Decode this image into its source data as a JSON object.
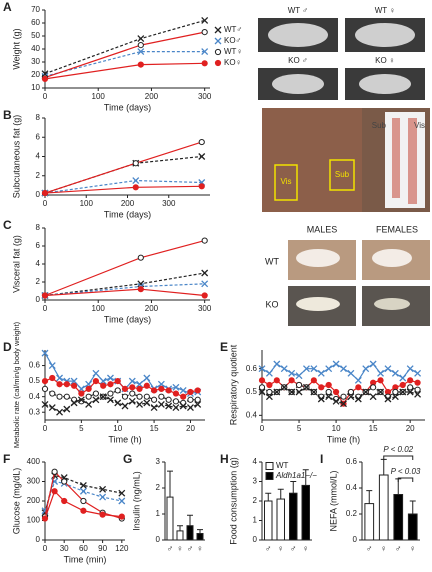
{
  "chart_data": [
    {
      "type": "line",
      "panel": "A",
      "xlabel": "Time (days)",
      "ylabel": "Weight (g)",
      "x": [
        0,
        180,
        300
      ],
      "xlim": [
        0,
        310
      ],
      "xticks": [
        0,
        100,
        200,
        300
      ],
      "ylim": [
        10,
        70
      ],
      "yticks": [
        10,
        20,
        30,
        40,
        50,
        60,
        70
      ],
      "legend": true,
      "series": [
        {
          "name": "WT♂",
          "color": "#222222",
          "marker": "x",
          "dash": true,
          "values": [
            21,
            48,
            62
          ]
        },
        {
          "name": "KO♂",
          "color": "#4a86c8",
          "marker": "x",
          "dash": true,
          "values": [
            19,
            38,
            38
          ]
        },
        {
          "name": "WT♀",
          "color": "#e02020",
          "marker": "circle-open",
          "dash": false,
          "values": [
            18,
            43,
            53
          ]
        },
        {
          "name": "KO♀",
          "color": "#e02020",
          "marker": "circle",
          "dash": false,
          "values": [
            17,
            28,
            29
          ]
        }
      ]
    },
    {
      "type": "line",
      "panel": "B",
      "xlabel": "Time (days)",
      "ylabel": "Subcutaneous fat (g)",
      "x": [
        0,
        220,
        380
      ],
      "xlim": [
        0,
        400
      ],
      "xticks": [
        0,
        100,
        200,
        300
      ],
      "ylim": [
        0,
        8
      ],
      "yticks": [
        0,
        2,
        4,
        6,
        8
      ],
      "series": [
        {
          "color": "#222222",
          "marker": "x",
          "dash": true,
          "values": [
            0.2,
            3.3,
            4.0
          ]
        },
        {
          "color": "#4a86c8",
          "marker": "x",
          "dash": true,
          "values": [
            0.2,
            1.5,
            1.3
          ]
        },
        {
          "color": "#e02020",
          "marker": "circle-open",
          "dash": false,
          "values": [
            0.2,
            3.3,
            5.5
          ]
        },
        {
          "color": "#e02020",
          "marker": "circle",
          "dash": false,
          "values": [
            0.2,
            0.8,
            0.9
          ]
        }
      ]
    },
    {
      "type": "line",
      "panel": "C",
      "xlabel": "Time (days)",
      "ylabel": "Visceral fat (g)",
      "x": [
        0,
        180,
        300
      ],
      "xlim": [
        0,
        310
      ],
      "xticks": [
        0,
        100,
        200,
        300
      ],
      "ylim": [
        0,
        8
      ],
      "yticks": [
        0,
        2,
        4,
        6,
        8
      ],
      "series": [
        {
          "color": "#222222",
          "marker": "x",
          "dash": true,
          "values": [
            0.5,
            1.8,
            3.0
          ]
        },
        {
          "color": "#4a86c8",
          "marker": "x",
          "dash": true,
          "values": [
            0.5,
            1.5,
            1.8
          ]
        },
        {
          "color": "#e02020",
          "marker": "circle-open",
          "dash": false,
          "values": [
            0.5,
            4.7,
            6.6
          ]
        },
        {
          "color": "#e02020",
          "marker": "circle",
          "dash": false,
          "values": [
            0.5,
            1.2,
            0.5
          ]
        }
      ]
    },
    {
      "type": "line",
      "panel": "D",
      "xlabel": "Time (h)",
      "ylabel": "Metabolic rate (cal/min/g body weight)",
      "x": [
        0,
        1,
        2,
        3,
        4,
        5,
        6,
        7,
        8,
        9,
        10,
        11,
        12,
        13,
        14,
        15,
        16,
        17,
        18,
        19,
        20,
        21
      ],
      "xlim": [
        0,
        22
      ],
      "xticks": [
        0,
        5,
        10,
        15,
        20
      ],
      "ylim": [
        0.25,
        0.7
      ],
      "yticks": [
        0.3,
        0.4,
        0.5,
        0.6
      ],
      "series": [
        {
          "color": "#4a86c8",
          "marker": "x",
          "dash": false,
          "values": [
            0.68,
            0.6,
            0.52,
            0.5,
            0.5,
            0.45,
            0.48,
            0.55,
            0.5,
            0.52,
            0.5,
            0.45,
            0.5,
            0.48,
            0.52,
            0.45,
            0.48,
            0.45,
            0.46,
            0.44,
            0.42,
            0.43
          ]
        },
        {
          "color": "#e02020",
          "marker": "circle",
          "dash": false,
          "values": [
            0.5,
            0.52,
            0.48,
            0.48,
            0.47,
            0.42,
            0.45,
            0.5,
            0.47,
            0.48,
            0.5,
            0.45,
            0.46,
            0.45,
            0.47,
            0.44,
            0.45,
            0.44,
            0.42,
            0.4,
            0.43,
            0.44
          ]
        },
        {
          "color": "#222222",
          "marker": "circle-open",
          "dash": true,
          "values": [
            0.45,
            0.42,
            0.4,
            0.4,
            0.38,
            0.37,
            0.4,
            0.42,
            0.4,
            0.42,
            0.44,
            0.4,
            0.42,
            0.4,
            0.4,
            0.38,
            0.4,
            0.38,
            0.37,
            0.36,
            0.38,
            0.38
          ]
        },
        {
          "color": "#222222",
          "marker": "x",
          "dash": true,
          "values": [
            0.35,
            0.33,
            0.3,
            0.32,
            0.36,
            0.38,
            0.35,
            0.38,
            0.4,
            0.38,
            0.36,
            0.34,
            0.37,
            0.35,
            0.36,
            0.33,
            0.35,
            0.34,
            0.33,
            0.34,
            0.33,
            0.35
          ]
        }
      ]
    },
    {
      "type": "line",
      "panel": "E",
      "xlabel": "Time (h)",
      "ylabel": "Respiratory quotient",
      "x": [
        0,
        1,
        2,
        3,
        4,
        5,
        6,
        7,
        8,
        9,
        10,
        11,
        12,
        13,
        14,
        15,
        16,
        17,
        18,
        19,
        20,
        21
      ],
      "xlim": [
        0,
        22
      ],
      "xticks": [
        0,
        5,
        10,
        15,
        20
      ],
      "ylim": [
        0.38,
        0.68
      ],
      "yticks": [
        0.4,
        0.5,
        0.6
      ],
      "series": [
        {
          "color": "#4a86c8",
          "marker": "x",
          "dash": false,
          "values": [
            0.6,
            0.58,
            0.62,
            0.6,
            0.58,
            0.57,
            0.6,
            0.6,
            0.58,
            0.6,
            0.62,
            0.6,
            0.58,
            0.55,
            0.6,
            0.62,
            0.58,
            0.6,
            0.58,
            0.56,
            0.6,
            0.58
          ]
        },
        {
          "color": "#e02020",
          "marker": "circle",
          "dash": false,
          "values": [
            0.55,
            0.53,
            0.55,
            0.52,
            0.55,
            0.53,
            0.52,
            0.55,
            0.52,
            0.53,
            0.5,
            0.45,
            0.5,
            0.52,
            0.5,
            0.54,
            0.55,
            0.5,
            0.52,
            0.53,
            0.55,
            0.54
          ]
        },
        {
          "color": "#222222",
          "marker": "circle-open",
          "dash": true,
          "values": [
            0.52,
            0.5,
            0.5,
            0.52,
            0.5,
            0.53,
            0.52,
            0.5,
            0.48,
            0.5,
            0.47,
            0.48,
            0.5,
            0.48,
            0.5,
            0.52,
            0.5,
            0.48,
            0.5,
            0.5,
            0.52,
            0.51
          ]
        },
        {
          "color": "#222222",
          "marker": "x",
          "dash": true,
          "values": [
            0.5,
            0.48,
            0.5,
            0.52,
            0.5,
            0.5,
            0.52,
            0.5,
            0.47,
            0.48,
            0.46,
            0.45,
            0.48,
            0.47,
            0.5,
            0.48,
            0.5,
            0.47,
            0.48,
            0.5,
            0.5,
            0.49
          ]
        }
      ]
    },
    {
      "type": "line",
      "panel": "F",
      "xlabel": "Time (min)",
      "ylabel": "Glucose (mg/dL)",
      "x": [
        0,
        15,
        30,
        60,
        90,
        120
      ],
      "xlim": [
        0,
        125
      ],
      "xticks": [
        0,
        30,
        60,
        90,
        120
      ],
      "ylim": [
        0,
        400
      ],
      "yticks": [
        0,
        100,
        200,
        300,
        400
      ],
      "series": [
        {
          "color": "#222222",
          "marker": "x",
          "dash": true,
          "values": [
            140,
            330,
            320,
            280,
            260,
            240
          ]
        },
        {
          "color": "#4a86c8",
          "marker": "x",
          "dash": true,
          "values": [
            150,
            300,
            290,
            250,
            220,
            200
          ]
        },
        {
          "color": "#e02020",
          "marker": "circle-open",
          "dash": false,
          "values": [
            120,
            350,
            300,
            200,
            140,
            110
          ]
        },
        {
          "color": "#e02020",
          "marker": "circle",
          "dash": false,
          "values": [
            110,
            250,
            200,
            150,
            130,
            120
          ]
        }
      ]
    },
    {
      "type": "bar",
      "panel": "G",
      "ylabel": "Insulin (ng/mL)",
      "categories": [
        "♂",
        "♀",
        "♂",
        "♀"
      ],
      "values": [
        1.65,
        0.35,
        0.55,
        0.25
      ],
      "errors": [
        1.0,
        0.2,
        0.4,
        0.15
      ],
      "colors": [
        "#ffffff",
        "#ffffff",
        "#000000",
        "#000000"
      ],
      "ylim": [
        0,
        3
      ],
      "yticks": [
        0,
        1,
        2,
        3
      ]
    },
    {
      "type": "bar",
      "panel": "H",
      "ylabel": "Food consumption (g)",
      "categories": [
        "♂",
        "♀",
        "♂",
        "♀"
      ],
      "values": [
        2.0,
        2.1,
        2.4,
        2.8
      ],
      "errors": [
        0.4,
        0.5,
        0.6,
        0.8
      ],
      "colors": [
        "#ffffff",
        "#ffffff",
        "#000000",
        "#000000"
      ],
      "ylim": [
        0,
        4
      ],
      "yticks": [
        0,
        1,
        2,
        3,
        4
      ],
      "legend": [
        {
          "name": "WT",
          "color": "#ffffff"
        },
        {
          "name": "Aldh1a1−/−",
          "color": "#000000"
        }
      ]
    },
    {
      "type": "bar",
      "panel": "I",
      "ylabel": "NEFA (mmol/L)",
      "categories": [
        "♂",
        "♀",
        "♂",
        "♀"
      ],
      "values": [
        0.28,
        0.5,
        0.35,
        0.2
      ],
      "errors": [
        0.1,
        0.12,
        0.12,
        0.1
      ],
      "colors": [
        "#ffffff",
        "#ffffff",
        "#000000",
        "#000000"
      ],
      "ylim": [
        0,
        0.6
      ],
      "yticks": [
        0,
        0.2,
        0.4,
        0.6
      ],
      "annotations": [
        "P < 0.02",
        "P < 0.03"
      ]
    }
  ],
  "figure": {
    "photos_a": [
      "WT ♂",
      "WT ♀",
      "KO ♂",
      "KO ♀"
    ],
    "photo_b": [
      "Vis",
      "Sub",
      "Sub",
      "Vis"
    ],
    "photo_c_cols": [
      "MALES",
      "FEMALES"
    ],
    "photo_c_rows": [
      "WT",
      "KO"
    ]
  }
}
